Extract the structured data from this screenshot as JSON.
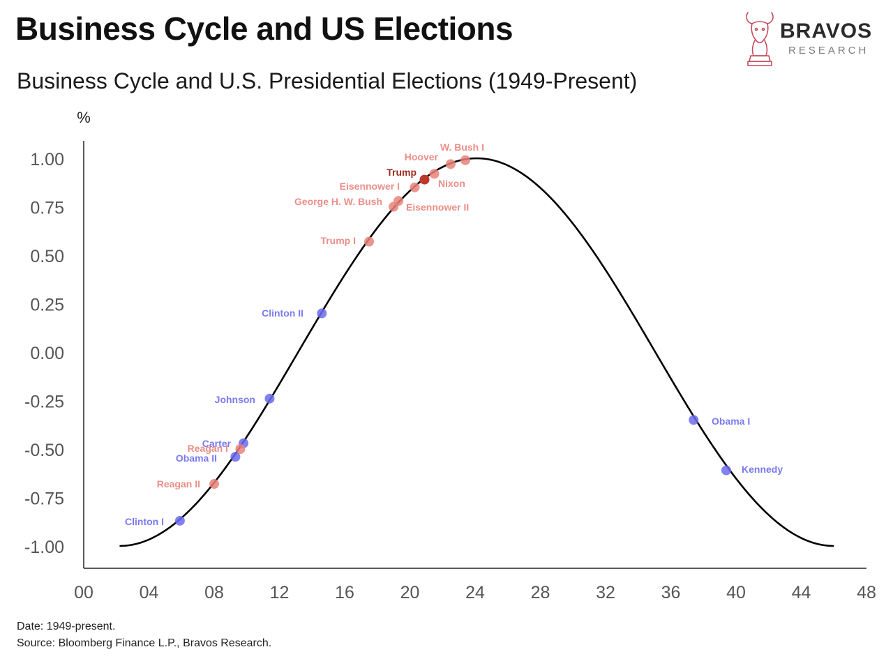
{
  "header": {
    "title": "Business Cycle and US Elections",
    "subtitle": "Business Cycle and U.S. Presidential Elections (1949-Present)"
  },
  "brand": {
    "name": "BRAVOS",
    "tagline": "RESEARCH",
    "icon": "bull-chess-knight-icon",
    "color": "#c44a5a"
  },
  "footer": {
    "date_note": "Date: 1949-present.",
    "source_note": "Source: Bloomberg Finance L.P., Bravos Research."
  },
  "chart_data": {
    "type": "line",
    "ylabel": "%",
    "xlabel": "",
    "xlim": [
      0,
      48
    ],
    "ylim": [
      -1.1,
      1.1
    ],
    "x_ticks": [
      "00",
      "04",
      "08",
      "12",
      "16",
      "20",
      "24",
      "28",
      "32",
      "36",
      "40",
      "44",
      "48"
    ],
    "y_ticks": [
      "1.00",
      "0.75",
      "0.50",
      "0.25",
      "0.00",
      "-0.25",
      "-0.50",
      "-0.75",
      "-1.00"
    ],
    "curve": {
      "type": "cosine",
      "x_start": 2.2,
      "x_end": 46,
      "peak_x": 24.1,
      "trough_x": 2.2,
      "amplitude": 1.0,
      "color": "#000000"
    },
    "colors": {
      "republican": "#e8827a",
      "democrat": "#6b6bef",
      "highlight": "#c0392b"
    },
    "points": [
      {
        "label": "W. Bush I",
        "x": 23.4,
        "y": 0.99,
        "party": "republican"
      },
      {
        "label": "Hoover",
        "x": 22.5,
        "y": 0.97,
        "party": "republican"
      },
      {
        "label": "Trump",
        "x": 20.9,
        "y": 0.89,
        "party": "highlight"
      },
      {
        "label": "Nixon",
        "x": 21.5,
        "y": 0.92,
        "party": "republican"
      },
      {
        "label": "Eisennower I",
        "x": 20.3,
        "y": 0.85,
        "party": "republican"
      },
      {
        "label": "George H. W. Bush",
        "x": 19.0,
        "y": 0.75,
        "party": "republican"
      },
      {
        "label": "Eisennower II",
        "x": 19.3,
        "y": 0.78,
        "party": "republican"
      },
      {
        "label": "Trump I",
        "x": 17.5,
        "y": 0.57,
        "party": "republican"
      },
      {
        "label": "Clinton II",
        "x": 14.6,
        "y": 0.2,
        "party": "democrat"
      },
      {
        "label": "Johnson",
        "x": 11.4,
        "y": -0.24,
        "party": "democrat"
      },
      {
        "label": "Carter",
        "x": 9.8,
        "y": -0.47,
        "party": "democrat"
      },
      {
        "label": "Reagan I",
        "x": 9.6,
        "y": -0.5,
        "party": "republican"
      },
      {
        "label": "Obama II",
        "x": 9.3,
        "y": -0.54,
        "party": "democrat"
      },
      {
        "label": "Reagan II",
        "x": 8.0,
        "y": -0.68,
        "party": "republican"
      },
      {
        "label": "Clinton I",
        "x": 5.9,
        "y": -0.87,
        "party": "democrat"
      },
      {
        "label": "Obama I",
        "x": 37.4,
        "y": -0.35,
        "party": "democrat"
      },
      {
        "label": "Kennedy",
        "x": 39.4,
        "y": -0.61,
        "party": "democrat"
      }
    ]
  }
}
